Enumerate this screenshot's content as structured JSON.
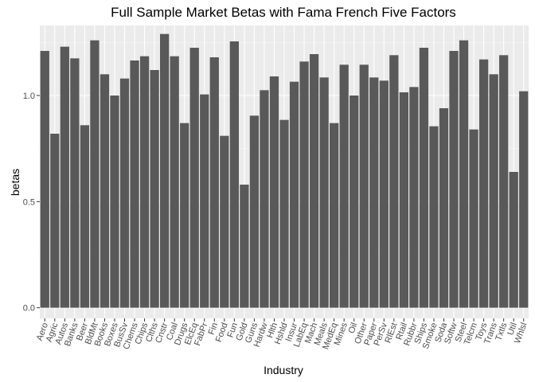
{
  "chart_data": {
    "type": "bar",
    "title": "Full Sample Market Betas with Fama French Five Factors",
    "xlabel": "Industry",
    "ylabel": "betas",
    "ylim": [
      -0.05,
      1.33
    ],
    "yticks": [
      0.0,
      0.5,
      1.0
    ],
    "ytick_labels": [
      "0.0",
      "0.5",
      "1.0"
    ],
    "grid": true,
    "legend": "none",
    "colors": {
      "bar": "#595959",
      "panel": "#ebebeb",
      "grid_major": "#ffffff"
    },
    "categories": [
      "Aero",
      "Agric",
      "Autos",
      "Banks",
      "Beer",
      "BldMt",
      "Books",
      "Boxes",
      "BusSv",
      "Chems",
      "Chips",
      "Clths",
      "Cnstr",
      "Coal",
      "Drugs",
      "ElcEq",
      "FabPr",
      "Fin",
      "Food",
      "Fun",
      "Gold",
      "Guns",
      "Hardw",
      "Hlth",
      "Hshld",
      "Insur",
      "LabEq",
      "Mach",
      "Meals",
      "MedEq",
      "Mines",
      "Oil",
      "Other",
      "Paper",
      "PerSv",
      "RlEst",
      "Rtail",
      "Rubbr",
      "Ships",
      "Smoke",
      "Soda",
      "Softw",
      "Steel",
      "Telcm",
      "Toys",
      "Trans",
      "Txtls",
      "Util",
      "Whlsl"
    ],
    "values": [
      1.21,
      0.82,
      1.23,
      1.175,
      0.86,
      1.26,
      1.1,
      1.0,
      1.08,
      1.165,
      1.185,
      1.12,
      1.29,
      1.185,
      0.87,
      1.225,
      1.005,
      1.18,
      0.81,
      1.255,
      0.58,
      0.905,
      1.025,
      1.09,
      0.885,
      1.065,
      1.16,
      1.195,
      1.085,
      0.87,
      1.145,
      1.0,
      1.145,
      1.085,
      1.07,
      1.19,
      1.015,
      1.04,
      1.225,
      0.855,
      0.94,
      1.21,
      1.26,
      0.84,
      1.17,
      1.1,
      1.19,
      0.64,
      1.02
    ]
  }
}
